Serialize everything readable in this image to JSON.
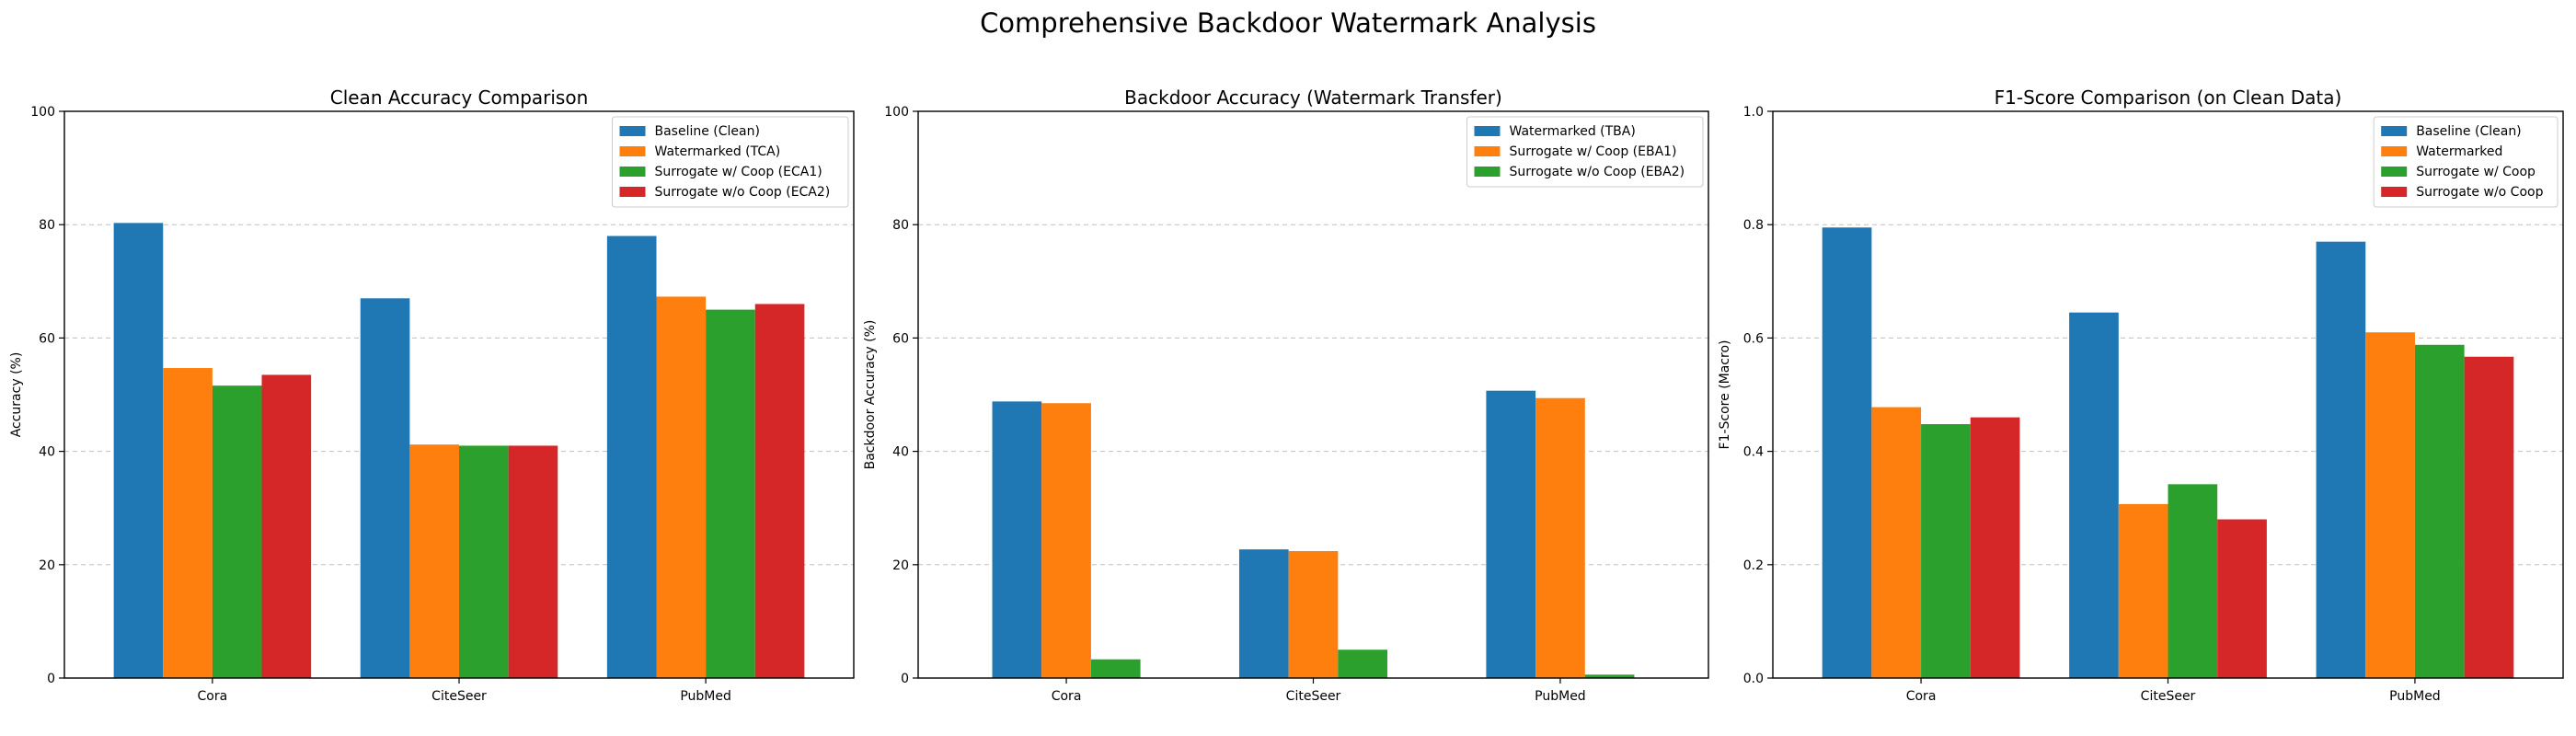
{
  "figure": {
    "title": "Comprehensive Backdoor Watermark Analysis"
  },
  "chart_data": [
    {
      "type": "bar",
      "title": "Clean Accuracy Comparison",
      "xlabel": "",
      "ylabel": "Accuracy (%)",
      "ylim": [
        0,
        100
      ],
      "yticks": [
        0,
        20,
        40,
        60,
        80,
        100
      ],
      "ytick_labels": [
        "0",
        "20",
        "40",
        "60",
        "80",
        "100"
      ],
      "grid": "y-dashed",
      "legend_position": "top-right",
      "categories": [
        "Cora",
        "CiteSeer",
        "PubMed"
      ],
      "series": [
        {
          "name": "Baseline (Clean)",
          "color": "#1f77b4",
          "values": [
            80.3,
            67.0,
            78.0
          ]
        },
        {
          "name": "Watermarked (TCA)",
          "color": "#ff7f0e",
          "values": [
            54.7,
            41.2,
            67.3
          ]
        },
        {
          "name": "Surrogate w/ Coop (ECA1)",
          "color": "#2ca02c",
          "values": [
            51.6,
            41.0,
            65.0
          ]
        },
        {
          "name": "Surrogate w/o Coop (ECA2)",
          "color": "#d62728",
          "values": [
            53.5,
            41.0,
            66.0
          ]
        }
      ]
    },
    {
      "type": "bar",
      "title": "Backdoor Accuracy (Watermark Transfer)",
      "xlabel": "",
      "ylabel": "Backdoor Accuracy (%)",
      "ylim": [
        0,
        100
      ],
      "yticks": [
        0,
        20,
        40,
        60,
        80,
        100
      ],
      "ytick_labels": [
        "0",
        "20",
        "40",
        "60",
        "80",
        "100"
      ],
      "grid": "y-dashed",
      "legend_position": "top-right",
      "categories": [
        "Cora",
        "CiteSeer",
        "PubMed"
      ],
      "series": [
        {
          "name": "Watermarked (TBA)",
          "color": "#1f77b4",
          "values": [
            48.8,
            22.7,
            50.7
          ]
        },
        {
          "name": "Surrogate w/ Coop (EBA1)",
          "color": "#ff7f0e",
          "values": [
            48.5,
            22.4,
            49.4
          ]
        },
        {
          "name": "Surrogate w/o Coop (EBA2)",
          "color": "#2ca02c",
          "values": [
            3.3,
            5.0,
            0.6
          ]
        }
      ]
    },
    {
      "type": "bar",
      "title": "F1-Score Comparison (on Clean Data)",
      "xlabel": "",
      "ylabel": "F1-Score (Macro)",
      "ylim": [
        0,
        1.0
      ],
      "yticks": [
        0,
        0.2,
        0.4,
        0.6,
        0.8,
        1.0
      ],
      "ytick_labels": [
        "0.0",
        "0.2",
        "0.4",
        "0.6",
        "0.8",
        "1.0"
      ],
      "grid": "y-dashed",
      "legend_position": "top-right",
      "categories": [
        "Cora",
        "CiteSeer",
        "PubMed"
      ],
      "series": [
        {
          "name": "Baseline (Clean)",
          "color": "#1f77b4",
          "values": [
            0.795,
            0.645,
            0.77
          ]
        },
        {
          "name": "Watermarked",
          "color": "#ff7f0e",
          "values": [
            0.478,
            0.307,
            0.61
          ]
        },
        {
          "name": "Surrogate w/ Coop",
          "color": "#2ca02c",
          "values": [
            0.448,
            0.342,
            0.588
          ]
        },
        {
          "name": "Surrogate w/o Coop",
          "color": "#d62728",
          "values": [
            0.46,
            0.28,
            0.567
          ]
        }
      ]
    }
  ]
}
